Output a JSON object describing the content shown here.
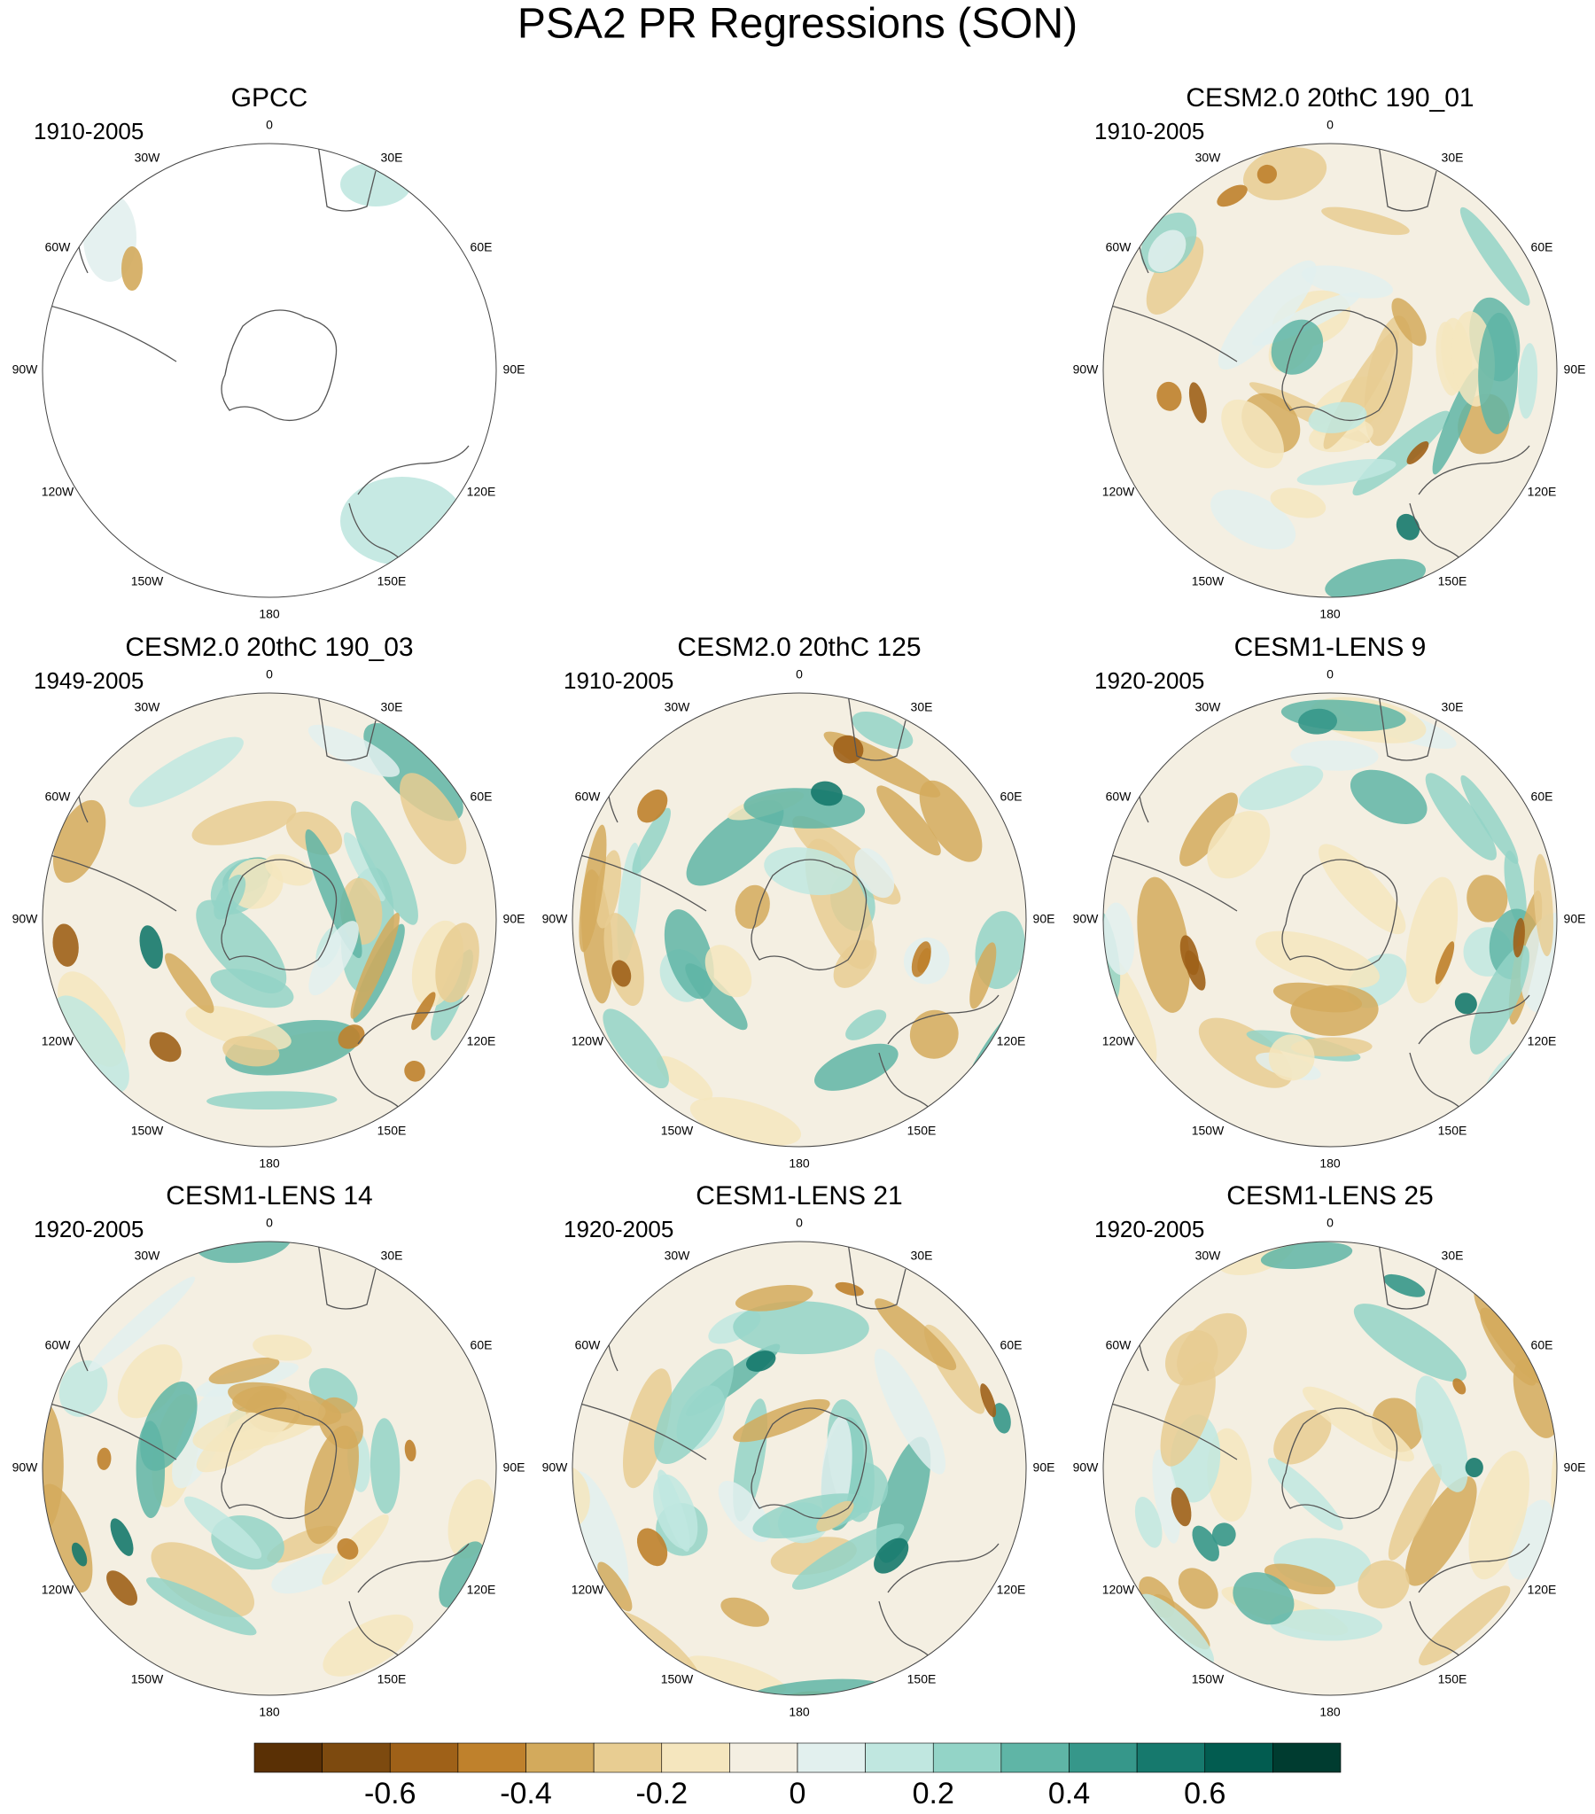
{
  "chart_data": {
    "type": "polar-map",
    "title": "PSA2 PR Regressions (SON)",
    "longitude_labels": [
      "0",
      "30E",
      "60E",
      "90E",
      "120E",
      "150E",
      "180",
      "150W",
      "120W",
      "90W",
      "60W",
      "30W"
    ],
    "panels": [
      {
        "title": "GPCC",
        "period": "1910-2005"
      },
      {
        "title": "CESM2.0 20thC 190_01",
        "period": "1910-2005"
      },
      {
        "title": "CESM2.0 20thC 190_03",
        "period": "1949-2005"
      },
      {
        "title": "CESM2.0 20thC 125",
        "period": "1910-2005"
      },
      {
        "title": "CESM1-LENS 9",
        "period": "1920-2005"
      },
      {
        "title": "CESM1-LENS 14",
        "period": "1920-2005"
      },
      {
        "title": "CESM1-LENS 21",
        "period": "1920-2005"
      },
      {
        "title": "CESM1-LENS 25",
        "period": "1920-2005"
      }
    ],
    "colorbar": {
      "colors": [
        "#5a3005",
        "#7d4a0f",
        "#9f6118",
        "#bf812c",
        "#d3aa5c",
        "#e8cd92",
        "#f5e6be",
        "#f4efe2",
        "#e2f0ee",
        "#c0e7e0",
        "#93d4c7",
        "#5fb5a6",
        "#36978a",
        "#16796d",
        "#025c50",
        "#003c30"
      ],
      "xlim": [
        -0.8,
        0.8
      ],
      "xticks": [
        -0.6,
        -0.4,
        -0.2,
        0,
        0.2,
        0.4,
        0.6
      ]
    }
  }
}
